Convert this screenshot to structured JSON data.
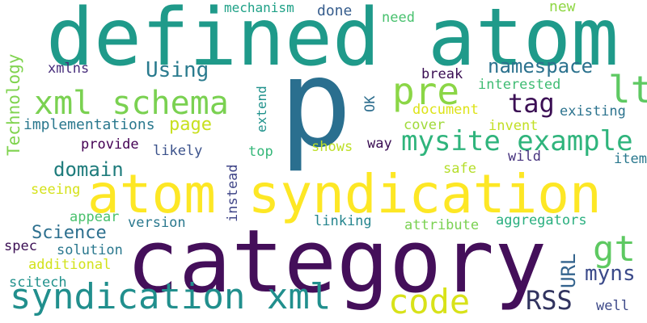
{
  "words": [
    {
      "text": "p",
      "color": "#2a6f8f"
    },
    {
      "text": "category",
      "color": "#440f5a"
    },
    {
      "text": "defined atom",
      "color": "#1f9a8a"
    },
    {
      "text": "atom syndication",
      "color": "#fde725"
    },
    {
      "text": "syndication xml",
      "color": "#218f8d"
    },
    {
      "text": "xml schema",
      "color": "#7ad151"
    },
    {
      "text": "mysite example",
      "color": "#2fb47c"
    },
    {
      "text": "pre",
      "color": "#8bd646"
    },
    {
      "text": "lt",
      "color": "#5ec962"
    },
    {
      "text": "code",
      "color": "#d8e219"
    },
    {
      "text": "gt",
      "color": "#5ec962"
    },
    {
      "text": "tag",
      "color": "#3b0f54"
    },
    {
      "text": "RSS",
      "color": "#31335f"
    },
    {
      "text": "namespace",
      "color": "#2c728e"
    },
    {
      "text": "Using",
      "color": "#2a7b8e"
    },
    {
      "text": "page",
      "color": "#c8e020"
    },
    {
      "text": "domain",
      "color": "#1f7c7c"
    },
    {
      "text": "Science",
      "color": "#2c6f8e"
    },
    {
      "text": "URL",
      "color": "#33638d"
    },
    {
      "text": "myns",
      "color": "#3b4a8a"
    },
    {
      "text": "Technology",
      "color": "#7fd34e"
    },
    {
      "text": "implementations",
      "color": "#2a788e"
    },
    {
      "text": "mechanism",
      "color": "#1fa187"
    },
    {
      "text": "done",
      "color": "#365d8d"
    },
    {
      "text": "need",
      "color": "#48c16e"
    },
    {
      "text": "new",
      "color": "#8fd744"
    },
    {
      "text": "xmlns",
      "color": "#472d7b"
    },
    {
      "text": "break",
      "color": "#3b0f54"
    },
    {
      "text": "interested",
      "color": "#3fbc73"
    },
    {
      "text": "OK",
      "color": "#2e6e8e"
    },
    {
      "text": "existing",
      "color": "#2c738e"
    },
    {
      "text": "document",
      "color": "#dde318"
    },
    {
      "text": "cover",
      "color": "#a0da39"
    },
    {
      "text": "invent",
      "color": "#c2df23"
    },
    {
      "text": "extend",
      "color": "#20928c"
    },
    {
      "text": "provide",
      "color": "#440154"
    },
    {
      "text": "likely",
      "color": "#3b528b"
    },
    {
      "text": "top",
      "color": "#35b779"
    },
    {
      "text": "shows",
      "color": "#bddf26"
    },
    {
      "text": "way",
      "color": "#3b0f54"
    },
    {
      "text": "wild",
      "color": "#46327e"
    },
    {
      "text": "items",
      "color": "#2a788e"
    },
    {
      "text": "instead",
      "color": "#404688"
    },
    {
      "text": "safe",
      "color": "#b5de2b"
    },
    {
      "text": "seeing",
      "color": "#d5e21a"
    },
    {
      "text": "appear",
      "color": "#4ac16d"
    },
    {
      "text": "version",
      "color": "#2a788e"
    },
    {
      "text": "linking",
      "color": "#25858e"
    },
    {
      "text": "attribute",
      "color": "#7ad151"
    },
    {
      "text": "aggregators",
      "color": "#29af7f"
    },
    {
      "text": "spec",
      "color": "#3b0f54"
    },
    {
      "text": "solution",
      "color": "#2a788e"
    },
    {
      "text": "additional",
      "color": "#d2e21b"
    },
    {
      "text": "scitech",
      "color": "#21918c"
    },
    {
      "text": "well",
      "color": "#3e4a89"
    }
  ]
}
